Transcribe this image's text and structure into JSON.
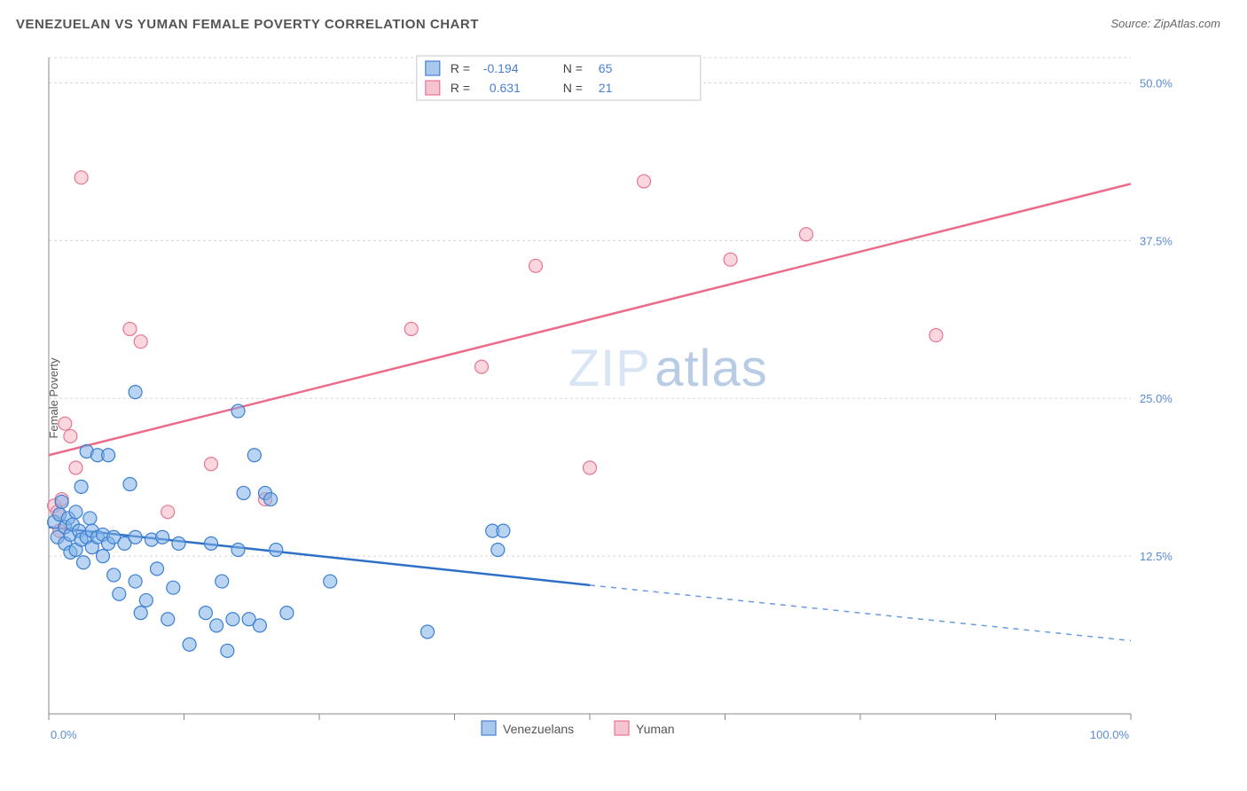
{
  "title": "VENEZUELAN VS YUMAN FEMALE POVERTY CORRELATION CHART",
  "source_prefix": "Source: ",
  "source_name": "ZipAtlas.com",
  "ylabel": "Female Poverty",
  "watermark": {
    "part1": "ZIP",
    "part2": "atlas"
  },
  "chart": {
    "type": "scatter",
    "xlim": [
      0,
      100
    ],
    "ylim": [
      0,
      52
    ],
    "x_ticks_major": [
      0,
      100
    ],
    "x_tick_labels": [
      "0.0%",
      "100.0%"
    ],
    "x_ticks_minor": [
      12.5,
      25,
      37.5,
      50,
      62.5,
      75,
      87.5
    ],
    "y_ticks": [
      12.5,
      25,
      37.5,
      50
    ],
    "y_tick_labels": [
      "12.5%",
      "25.0%",
      "37.5%",
      "50.0%"
    ],
    "grid_color": "#d5d5d5",
    "background_color": "#ffffff",
    "marker_radius": 7.5,
    "series": [
      {
        "name": "Venezuelans",
        "color_fill": "#7fb0e8",
        "color_stroke": "#3b7fd1",
        "R": "-0.194",
        "N": "65",
        "trend": {
          "x1": 0,
          "y1": 14.8,
          "x2": 50,
          "y2": 10.2,
          "x2_dash": 100,
          "y2_dash": 5.8
        },
        "points": [
          [
            0.5,
            15.2
          ],
          [
            0.8,
            14.0
          ],
          [
            1.0,
            15.8
          ],
          [
            1.2,
            16.8
          ],
          [
            1.5,
            13.5
          ],
          [
            1.5,
            14.8
          ],
          [
            1.8,
            15.5
          ],
          [
            2.0,
            12.8
          ],
          [
            2.0,
            14.2
          ],
          [
            2.2,
            15.0
          ],
          [
            2.5,
            13.0
          ],
          [
            2.5,
            16.0
          ],
          [
            2.8,
            14.5
          ],
          [
            3.0,
            13.8
          ],
          [
            3.0,
            18.0
          ],
          [
            3.2,
            12.0
          ],
          [
            3.5,
            14.0
          ],
          [
            3.5,
            20.8
          ],
          [
            3.8,
            15.5
          ],
          [
            4.0,
            13.2
          ],
          [
            4.0,
            14.5
          ],
          [
            4.5,
            14.0
          ],
          [
            4.5,
            20.5
          ],
          [
            5.0,
            12.5
          ],
          [
            5.0,
            14.2
          ],
          [
            5.5,
            13.5
          ],
          [
            5.5,
            20.5
          ],
          [
            6.0,
            11.0
          ],
          [
            6.0,
            14.0
          ],
          [
            6.5,
            9.5
          ],
          [
            7.0,
            13.5
          ],
          [
            7.5,
            18.2
          ],
          [
            8.0,
            10.5
          ],
          [
            8.0,
            14.0
          ],
          [
            8.0,
            25.5
          ],
          [
            8.5,
            8.0
          ],
          [
            9.0,
            9.0
          ],
          [
            9.5,
            13.8
          ],
          [
            10.0,
            11.5
          ],
          [
            10.5,
            14.0
          ],
          [
            11.0,
            7.5
          ],
          [
            11.5,
            10.0
          ],
          [
            12.0,
            13.5
          ],
          [
            13.0,
            5.5
          ],
          [
            14.5,
            8.0
          ],
          [
            15.0,
            13.5
          ],
          [
            15.5,
            7.0
          ],
          [
            16.0,
            10.5
          ],
          [
            16.5,
            5.0
          ],
          [
            17.0,
            7.5
          ],
          [
            17.5,
            13.0
          ],
          [
            17.5,
            24.0
          ],
          [
            18.0,
            17.5
          ],
          [
            18.5,
            7.5
          ],
          [
            19.0,
            20.5
          ],
          [
            19.5,
            7.0
          ],
          [
            20.0,
            17.5
          ],
          [
            20.5,
            17.0
          ],
          [
            21.0,
            13.0
          ],
          [
            22.0,
            8.0
          ],
          [
            26.0,
            10.5
          ],
          [
            35.0,
            6.5
          ],
          [
            41.0,
            14.5
          ],
          [
            41.5,
            13.0
          ],
          [
            42.0,
            14.5
          ]
        ]
      },
      {
        "name": "Yuman",
        "color_fill": "#f5b5c5",
        "color_stroke": "#e77590",
        "R": "0.631",
        "N": "21",
        "trend": {
          "x1": 0,
          "y1": 20.5,
          "x2": 100,
          "y2": 42.0
        },
        "points": [
          [
            0.5,
            16.5
          ],
          [
            0.8,
            16.0
          ],
          [
            1.0,
            14.5
          ],
          [
            1.2,
            17.0
          ],
          [
            1.5,
            23.0
          ],
          [
            2.0,
            22.0
          ],
          [
            2.5,
            19.5
          ],
          [
            3.0,
            42.5
          ],
          [
            7.5,
            30.5
          ],
          [
            8.5,
            29.5
          ],
          [
            11.0,
            16.0
          ],
          [
            15.0,
            19.8
          ],
          [
            20.0,
            17.0
          ],
          [
            33.5,
            30.5
          ],
          [
            40.0,
            27.5
          ],
          [
            45.0,
            35.5
          ],
          [
            55.0,
            42.2
          ],
          [
            63.0,
            36.0
          ],
          [
            70.0,
            38.0
          ],
          [
            82.0,
            30.0
          ],
          [
            50.0,
            19.5
          ]
        ]
      }
    ],
    "legend_stats": {
      "r_label": "R =",
      "n_label": "N ="
    },
    "bottom_legend": [
      "Venezuelans",
      "Yuman"
    ]
  }
}
